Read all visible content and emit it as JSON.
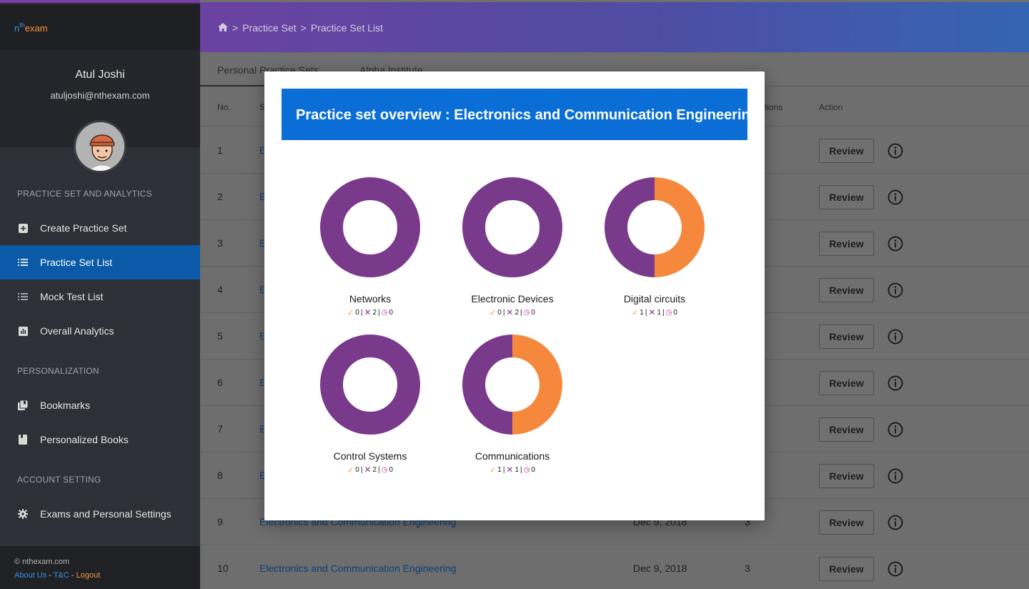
{
  "app": {
    "logo": {
      "n": "n",
      "th": "th",
      "exam": "exam"
    }
  },
  "profile": {
    "name": "Atul Joshi",
    "email": "atuljoshi@nthexam.com"
  },
  "sidebar": {
    "sections": [
      {
        "label": "PRACTICE SET AND ANALYTICS"
      },
      {
        "label": "PERSONALIZATION"
      },
      {
        "label": "ACCOUNT SETTING"
      }
    ],
    "items": [
      {
        "label": "Create Practice Set",
        "icon": "plus-square-icon"
      },
      {
        "label": "Practice Set List",
        "icon": "list-icon",
        "active": true
      },
      {
        "label": "Mock Test List",
        "icon": "list-icon"
      },
      {
        "label": "Overall Analytics",
        "icon": "bar-chart-icon"
      },
      {
        "label": "Bookmarks",
        "icon": "bookmarks-icon"
      },
      {
        "label": "Personalized Books",
        "icon": "book-icon"
      },
      {
        "label": "Exams and Personal Settings",
        "icon": "gear-icon"
      }
    ],
    "footer": {
      "copyright": "© nthexam.com",
      "about": "About Us",
      "sep1": " - ",
      "tc": "T&C",
      "sep2": " - ",
      "logout": "Logout"
    }
  },
  "header": {
    "breadcrumb": [
      "Practice Set",
      "Practice Set List"
    ]
  },
  "main": {
    "tabs": [
      {
        "label": "Personal Practice Sets"
      },
      {
        "label": "Alpha Institute"
      }
    ],
    "columns": {
      "no": "No.",
      "set": "S",
      "questions": "tions",
      "action": "Action"
    },
    "review_label": "Review",
    "rows": [
      {
        "no": "1",
        "name": "E",
        "date": "",
        "q": ""
      },
      {
        "no": "2",
        "name": "E",
        "date": "",
        "q": ""
      },
      {
        "no": "3",
        "name": "E",
        "date": "",
        "q": ""
      },
      {
        "no": "4",
        "name": "E",
        "date": "",
        "q": ""
      },
      {
        "no": "5",
        "name": "E",
        "date": "",
        "q": ""
      },
      {
        "no": "6",
        "name": "E",
        "date": "",
        "q": ""
      },
      {
        "no": "7",
        "name": "E",
        "date": "",
        "q": ""
      },
      {
        "no": "8",
        "name": "E",
        "date": "",
        "q": ""
      },
      {
        "no": "9",
        "name": "Electronics and Communication Engineering",
        "date": "Dec 9, 2018",
        "q": "3"
      },
      {
        "no": "10",
        "name": "Electronics and Communication Engineering",
        "date": "Dec 9, 2018",
        "q": "3"
      }
    ]
  },
  "modal": {
    "title": "Practice set overview : Electronics and Communication Engineering",
    "colors": {
      "wrong": "#7a3a8c",
      "correct": "#f5883c"
    }
  },
  "chart_data": {
    "type": "pie",
    "charts": [
      {
        "title": "Networks",
        "correct": 0,
        "wrong": 2,
        "unattempted": 0
      },
      {
        "title": "Electronic Devices",
        "correct": 0,
        "wrong": 2,
        "unattempted": 0
      },
      {
        "title": "Digital circuits",
        "correct": 1,
        "wrong": 1,
        "unattempted": 0
      },
      {
        "title": "Control Systems",
        "correct": 0,
        "wrong": 2,
        "unattempted": 0
      },
      {
        "title": "Communications",
        "correct": 1,
        "wrong": 1,
        "unattempted": 0
      }
    ]
  }
}
